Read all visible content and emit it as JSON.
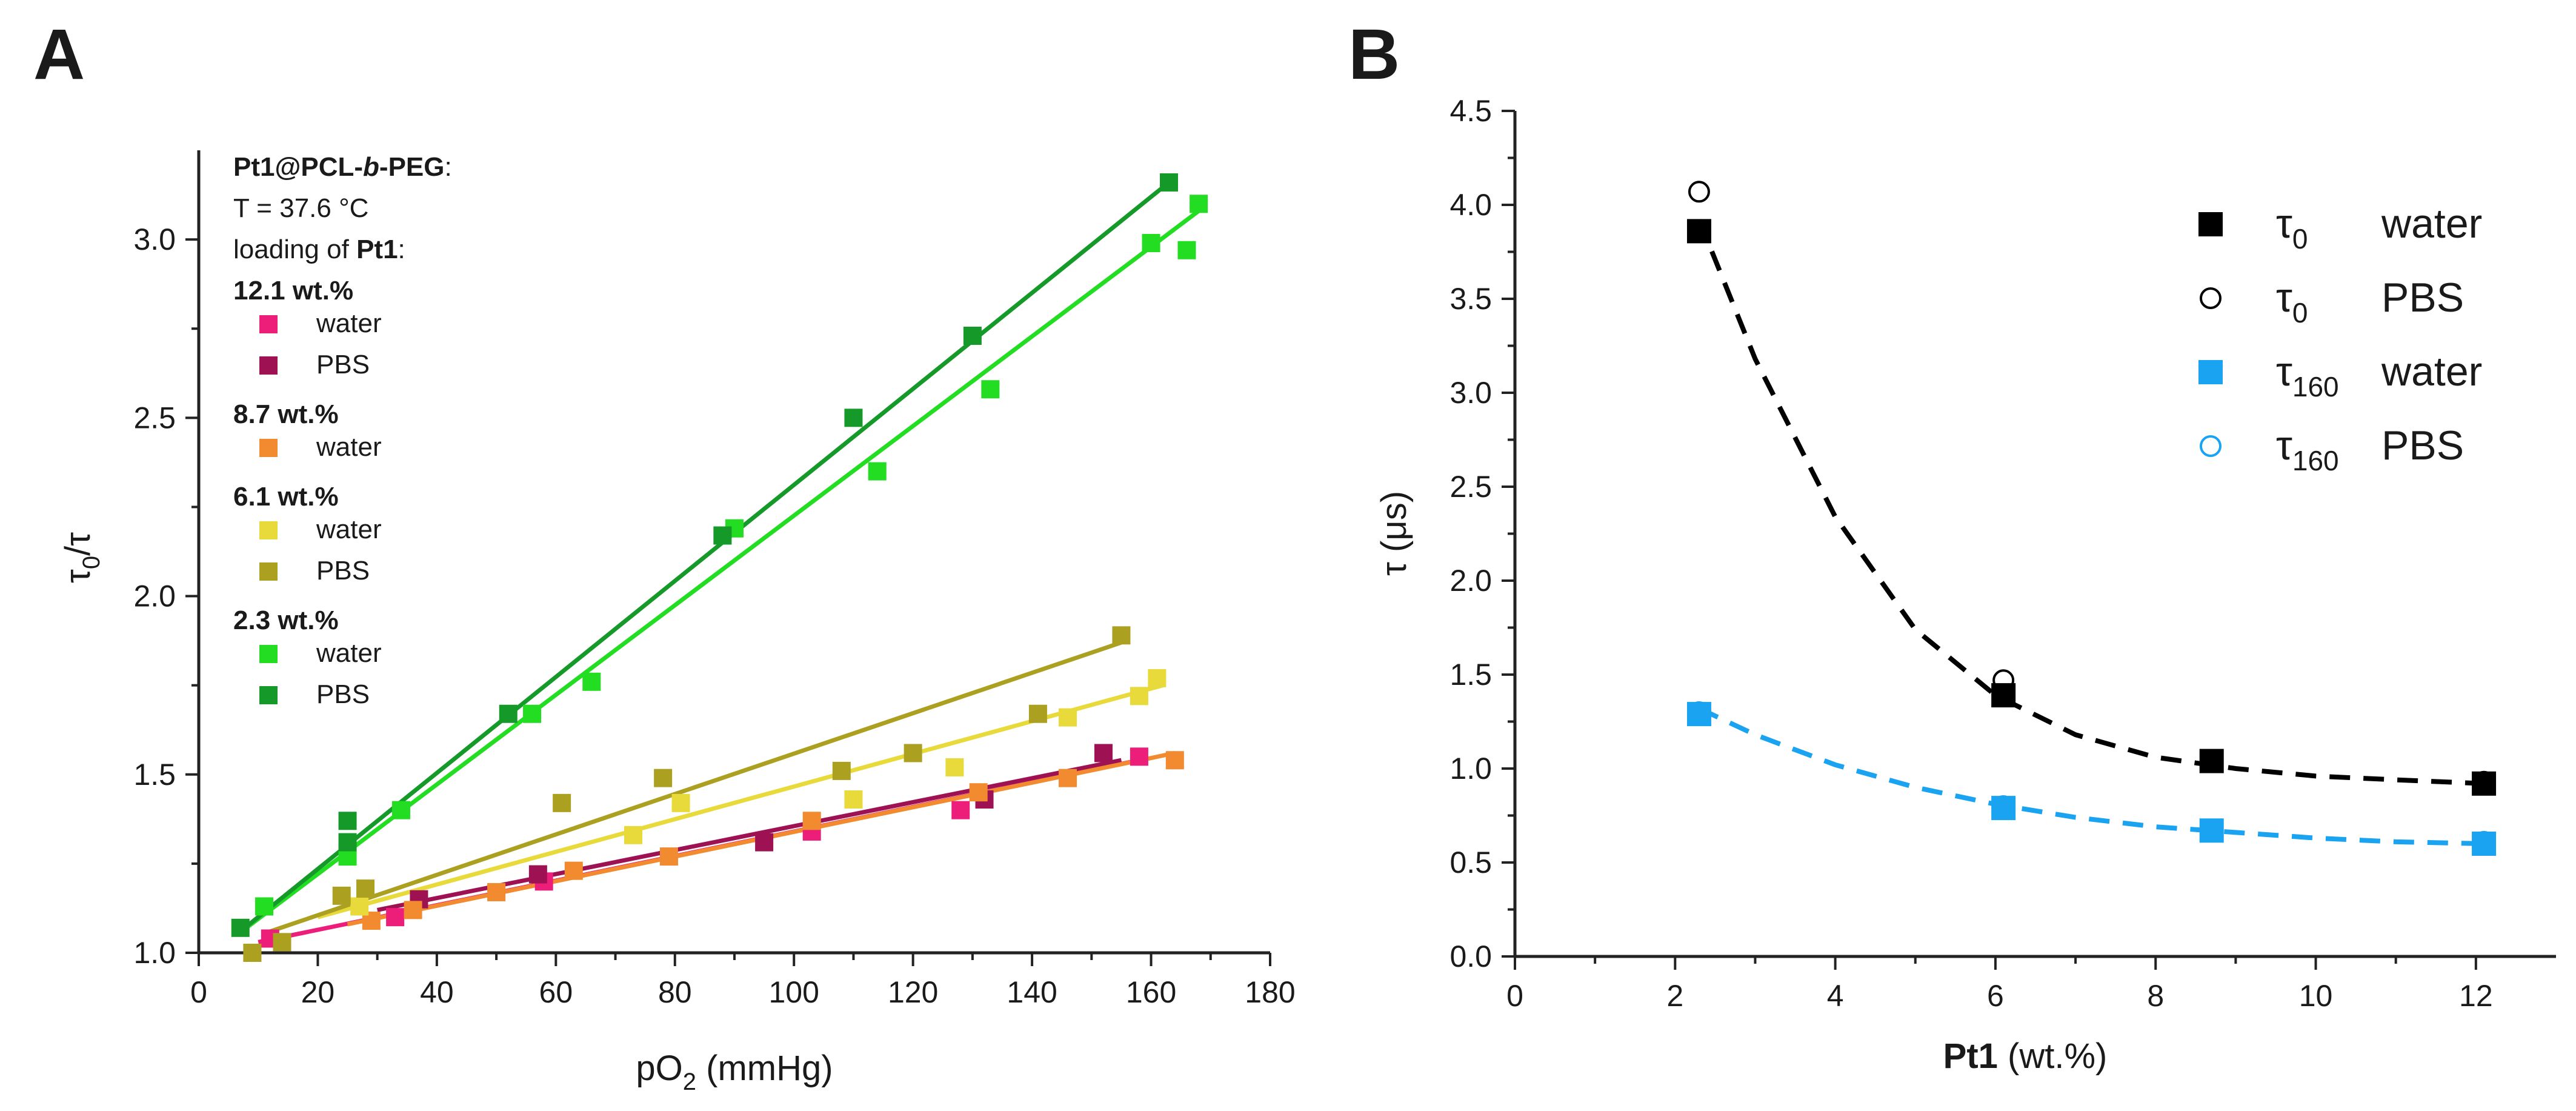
{
  "chart_data": [
    {
      "panel": "A",
      "type": "scatter",
      "legend_title": {
        "prefix": "Pt1@PCL-",
        "italic": "b",
        "suffix": "-PEG",
        "tail": ":"
      },
      "temperature_line": "T = 37.6 °C",
      "loading_line": {
        "prefix": "loading of ",
        "bold": "Pt1",
        "suffix": ":"
      },
      "xlabel": {
        "main": "pO",
        "sub": "2",
        "unit": " (mmHg)"
      },
      "ylabel": {
        "main": "τ",
        "sub": "0",
        "rest": "/τ"
      },
      "xlim": [
        0,
        180
      ],
      "ylim": [
        1.0,
        3.25
      ],
      "xticks": [
        0,
        20,
        40,
        60,
        80,
        100,
        120,
        140,
        160,
        180
      ],
      "yticks": [
        "1.0",
        "1.5",
        "2.0",
        "2.5",
        "3.0"
      ],
      "yticks_values": [
        1.0,
        1.5,
        2.0,
        2.5,
        3.0
      ],
      "groups": [
        {
          "loading": "12.1 wt.%",
          "series": [
            {
              "name": "water",
              "color": "#EC1E7A",
              "points": [
                [
                  12,
                  1.04
                ],
                [
                  33,
                  1.1
                ],
                [
                  58,
                  1.2
                ],
                [
                  103,
                  1.34
                ],
                [
                  128,
                  1.4
                ],
                [
                  158,
                  1.55
                ]
              ],
              "fit": [
                [
                  10,
                  1.03
                ],
                [
                  158,
                  1.54
                ]
              ]
            },
            {
              "name": "PBS",
              "color": "#9E1254",
              "points": [
                [
                  37,
                  1.15
                ],
                [
                  57,
                  1.22
                ],
                [
                  95,
                  1.31
                ],
                [
                  132,
                  1.43
                ],
                [
                  152,
                  1.56
                ]
              ],
              "fit": [
                [
                  30,
                  1.12
                ],
                [
                  155,
                  1.54
                ]
              ]
            }
          ]
        },
        {
          "loading": "8.7 wt.%",
          "series": [
            {
              "name": "water",
              "color": "#F28A30",
              "points": [
                [
                  29,
                  1.09
                ],
                [
                  36,
                  1.12
                ],
                [
                  50,
                  1.17
                ],
                [
                  63,
                  1.23
                ],
                [
                  79,
                  1.27
                ],
                [
                  103,
                  1.37
                ],
                [
                  131,
                  1.45
                ],
                [
                  146,
                  1.49
                ],
                [
                  164,
                  1.54
                ]
              ],
              "fit": [
                [
                  25,
                  1.08
                ],
                [
                  164,
                  1.56
                ]
              ]
            }
          ]
        },
        {
          "loading": "6.1 wt.%",
          "series": [
            {
              "name": "water",
              "color": "#E7DA3A",
              "points": [
                [
                  27,
                  1.13
                ],
                [
                  73,
                  1.33
                ],
                [
                  81,
                  1.42
                ],
                [
                  110,
                  1.43
                ],
                [
                  127,
                  1.52
                ],
                [
                  146,
                  1.66
                ],
                [
                  158,
                  1.72
                ],
                [
                  161,
                  1.77
                ]
              ],
              "fit": [
                [
                  20,
                  1.1
                ],
                [
                  162,
                  1.75
                ]
              ]
            },
            {
              "name": "PBS",
              "color": "#ACA021",
              "points": [
                [
                  9,
                  1.0
                ],
                [
                  14,
                  1.03
                ],
                [
                  24,
                  1.16
                ],
                [
                  28,
                  1.18
                ],
                [
                  61,
                  1.42
                ],
                [
                  78,
                  1.49
                ],
                [
                  108,
                  1.51
                ],
                [
                  120,
                  1.56
                ],
                [
                  141,
                  1.67
                ],
                [
                  155,
                  1.89
                ]
              ],
              "fit": [
                [
                  12,
                  1.06
                ],
                [
                  155,
                  1.87
                ]
              ]
            }
          ]
        },
        {
          "loading": "2.3 wt.%",
          "series": [
            {
              "name": "water",
              "color": "#22DD22",
              "points": [
                [
                  11,
                  1.13
                ],
                [
                  25,
                  1.27
                ],
                [
                  34,
                  1.4
                ],
                [
                  56,
                  1.67
                ],
                [
                  66,
                  1.76
                ],
                [
                  90,
                  2.19
                ],
                [
                  114,
                  2.35
                ],
                [
                  133,
                  2.58
                ],
                [
                  160,
                  2.99
                ],
                [
                  166,
                  2.97
                ],
                [
                  168,
                  3.1
                ]
              ],
              "fit": [
                [
                  8,
                  1.07
                ],
                [
                  168,
                  3.08
                ]
              ]
            },
            {
              "name": "PBS",
              "color": "#159A2A",
              "points": [
                [
                  7,
                  1.07
                ],
                [
                  25,
                  1.37
                ],
                [
                  25,
                  1.31
                ],
                [
                  52,
                  1.67
                ],
                [
                  88,
                  2.17
                ],
                [
                  110,
                  2.5
                ],
                [
                  130,
                  2.73
                ],
                [
                  163,
                  3.16
                ]
              ],
              "fit": [
                [
                  7,
                  1.06
                ],
                [
                  163,
                  3.16
                ]
              ]
            }
          ]
        }
      ]
    },
    {
      "panel": "B",
      "type": "scatter",
      "xlabel": {
        "bold": "Pt1",
        "rest": " (wt.%)"
      },
      "ylabel": "τ (μs)",
      "xlim": [
        0,
        13
      ],
      "ylim": [
        0,
        4.5
      ],
      "xticks": [
        0,
        2,
        4,
        6,
        8,
        10,
        12
      ],
      "yticks": [
        "0.0",
        "0.5",
        "1.0",
        "1.5",
        "2.0",
        "2.5",
        "3.0",
        "3.5",
        "4.0",
        "4.5"
      ],
      "yticks_values": [
        0,
        0.5,
        1.0,
        1.5,
        2.0,
        2.5,
        3.0,
        3.5,
        4.0,
        4.5
      ],
      "series": [
        {
          "symbol": "τ",
          "sub": "0",
          "medium": "water",
          "marker": "filled-square",
          "color": "#000000",
          "x": [
            2.3,
            6.1,
            8.7,
            12.1
          ],
          "y": [
            3.86,
            1.39,
            1.04,
            0.92
          ]
        },
        {
          "symbol": "τ",
          "sub": "0",
          "medium": "PBS",
          "marker": "open-circle",
          "color": "#000000",
          "x": [
            2.3,
            6.1,
            12.1
          ],
          "y": [
            4.07,
            1.47,
            0.93
          ]
        },
        {
          "symbol": "τ",
          "sub": "160",
          "medium": "water",
          "marker": "filled-square",
          "color": "#1AA3F0",
          "x": [
            2.3,
            6.1,
            8.7,
            12.1
          ],
          "y": [
            1.29,
            0.79,
            0.67,
            0.6
          ]
        },
        {
          "symbol": "τ",
          "sub": "160",
          "medium": "PBS",
          "marker": "open-circle",
          "color": "#1AA3F0",
          "x": [
            2.3,
            6.1,
            12.1
          ],
          "y": [
            1.3,
            0.8,
            0.61
          ]
        }
      ],
      "fits": [
        {
          "name": "τ0 fit",
          "color": "#000000",
          "style": "dashed",
          "x": [
            2.3,
            3,
            4,
            5,
            6,
            7,
            8,
            9,
            10,
            11,
            12.1
          ],
          "y": [
            3.92,
            3.18,
            2.34,
            1.74,
            1.39,
            1.18,
            1.06,
            1.0,
            0.96,
            0.94,
            0.92
          ]
        },
        {
          "name": "τ160 fit",
          "color": "#1AA3F0",
          "style": "dashed",
          "x": [
            2.3,
            3,
            4,
            5,
            6,
            7,
            8,
            9,
            10,
            11,
            12.1
          ],
          "y": [
            1.32,
            1.18,
            1.02,
            0.9,
            0.81,
            0.74,
            0.69,
            0.66,
            0.63,
            0.61,
            0.6
          ]
        }
      ]
    }
  ]
}
